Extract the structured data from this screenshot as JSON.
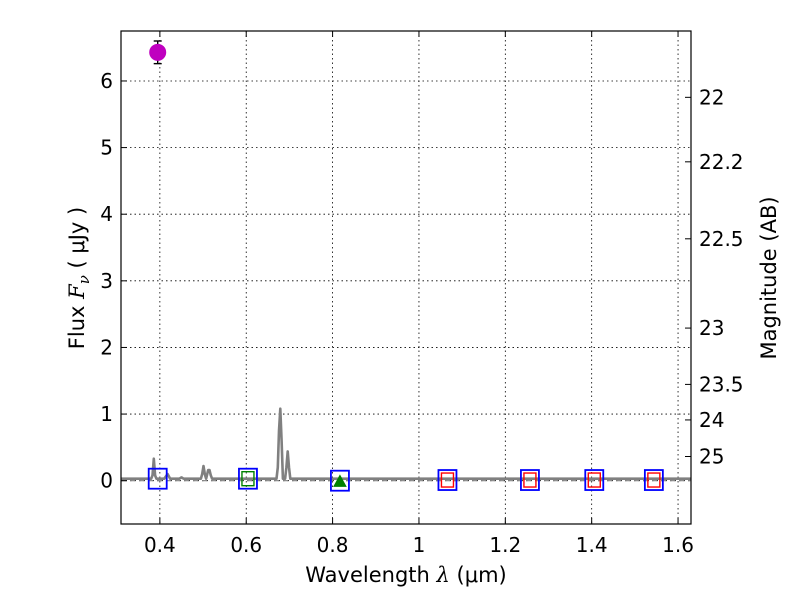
{
  "chart_data": {
    "type": "scatter",
    "title": "",
    "xlabel": {
      "prefix": "Wavelength",
      "symbol": "λ",
      "unit": "(μm)"
    },
    "ylabel": {
      "prefix": "Flux",
      "symbol": "F",
      "subscript": "ν",
      "unit": "( μJy )"
    },
    "y2label": "Magnitude (AB)",
    "xlim": [
      0.31,
      1.63
    ],
    "ylim": [
      -0.65,
      6.75
    ],
    "grid": true,
    "x_ticks": [
      {
        "value": 0.4,
        "label": "0.4"
      },
      {
        "value": 0.6,
        "label": "0.6"
      },
      {
        "value": 0.8,
        "label": "0.8"
      },
      {
        "value": 1.0,
        "label": "1"
      },
      {
        "value": 1.2,
        "label": "1.2"
      },
      {
        "value": 1.4,
        "label": "1.4"
      },
      {
        "value": 1.6,
        "label": "1.6"
      }
    ],
    "y_ticks": [
      {
        "value": 0,
        "label": "0"
      },
      {
        "value": 1,
        "label": "1"
      },
      {
        "value": 2,
        "label": "2"
      },
      {
        "value": 3,
        "label": "3"
      },
      {
        "value": 4,
        "label": "4"
      },
      {
        "value": 5,
        "label": "5"
      },
      {
        "value": 6,
        "label": "6"
      }
    ],
    "y2_ticks": [
      {
        "mag": 22,
        "label": "22"
      },
      {
        "mag": 22.2,
        "label": "22.2"
      },
      {
        "mag": 22.5,
        "label": "22.5"
      },
      {
        "mag": 23,
        "label": "23"
      },
      {
        "mag": 23.5,
        "label": "23.5"
      },
      {
        "mag": 24,
        "label": "24"
      },
      {
        "mag": 25,
        "label": "25"
      }
    ],
    "series": [
      {
        "name": "template spectrum",
        "kind": "line",
        "color": "#808080",
        "points": [
          [
            0.31,
            0.03
          ],
          [
            0.38,
            0.03
          ],
          [
            0.383,
            0.08
          ],
          [
            0.386,
            0.33
          ],
          [
            0.389,
            0.08
          ],
          [
            0.392,
            0.03
          ],
          [
            0.41,
            0.03
          ],
          [
            0.418,
            0.1
          ],
          [
            0.424,
            0.03
          ],
          [
            0.445,
            0.03
          ],
          [
            0.45,
            0.05
          ],
          [
            0.455,
            0.03
          ],
          [
            0.495,
            0.03
          ],
          [
            0.498,
            0.1
          ],
          [
            0.501,
            0.22
          ],
          [
            0.504,
            0.1
          ],
          [
            0.507,
            0.03
          ],
          [
            0.509,
            0.08
          ],
          [
            0.512,
            0.16
          ],
          [
            0.515,
            0.16
          ],
          [
            0.518,
            0.08
          ],
          [
            0.521,
            0.03
          ],
          [
            0.67,
            0.03
          ],
          [
            0.673,
            0.2
          ],
          [
            0.676,
            0.75
          ],
          [
            0.679,
            1.08
          ],
          [
            0.682,
            0.6
          ],
          [
            0.685,
            0.03
          ],
          [
            0.69,
            0.03
          ],
          [
            0.693,
            0.2
          ],
          [
            0.696,
            0.44
          ],
          [
            0.699,
            0.2
          ],
          [
            0.702,
            0.03
          ],
          [
            1.63,
            0.03
          ]
        ]
      },
      {
        "name": "model photometry (blue)",
        "kind": "open-square",
        "color": "#0000ff",
        "points": [
          [
            0.395,
            0.03
          ],
          [
            0.604,
            0.03
          ],
          [
            0.817,
            0.0
          ],
          [
            1.066,
            0.01
          ],
          [
            1.257,
            0.01
          ],
          [
            1.406,
            0.01
          ],
          [
            1.544,
            0.01
          ]
        ]
      },
      {
        "name": "model photometry (red)",
        "kind": "open-square-small",
        "color": "#ff0000",
        "points": [
          [
            1.066,
            0.01
          ],
          [
            1.257,
            0.01
          ],
          [
            1.406,
            0.01
          ],
          [
            1.544,
            0.01
          ]
        ]
      },
      {
        "name": "model photometry (green)",
        "kind": "open-square-small",
        "color": "#008000",
        "points": [
          [
            0.604,
            0.03
          ]
        ]
      },
      {
        "name": "detection",
        "kind": "filled-circle",
        "color": "#bf00bf",
        "points": [
          [
            0.395,
            6.43
          ]
        ],
        "errors": [
          0.17
        ]
      },
      {
        "name": "upper limit",
        "kind": "filled-triangle",
        "color": "#008000",
        "points": [
          [
            0.817,
            -0.01
          ]
        ]
      }
    ],
    "zero_line": {
      "value": 0.0,
      "style": "dashed",
      "color": "#808080"
    }
  },
  "colors": {
    "axis": "#000000",
    "grid": "#000000"
  }
}
